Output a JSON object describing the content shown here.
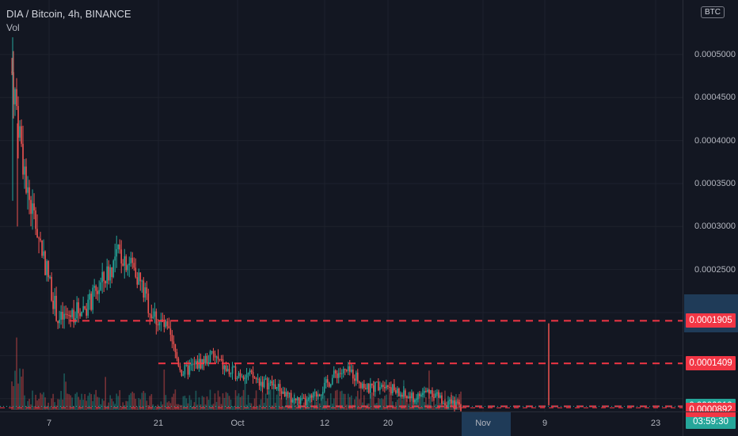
{
  "legend": {
    "symbol": "DIA / Bitcoin, 4h, BINANCE",
    "volume_label": "Vol"
  },
  "currency_badge": "BTC",
  "price_axis": {
    "ticks": [
      "0.0005000",
      "0.0004500",
      "0.0004000",
      "0.0003500",
      "0.0003000",
      "0.0002500"
    ],
    "min": 8.5e-05,
    "max": 0.000545
  },
  "time_axis": {
    "ticks": [
      "7",
      "21",
      "Oct",
      "12",
      "20",
      "Nov",
      "9",
      "23"
    ]
  },
  "price_tags": [
    {
      "label": "0.0001905",
      "value": 0.0001905,
      "type": "red"
    },
    {
      "label": "0.0001409",
      "value": 0.0001409,
      "type": "red"
    },
    {
      "label": "0.0000910",
      "value": 9.1e-05,
      "type": "teal"
    },
    {
      "label": "03:59:30",
      "type": "teal-countdown"
    },
    {
      "label": "0.0000892",
      "value": 8.92e-05,
      "type": "red"
    }
  ],
  "horizontal_levels": [
    0.0001905,
    0.0001409,
    9.1e-05
  ],
  "colors": {
    "background": "#131722",
    "grid": "#1e222d",
    "up": "#26a69a",
    "down": "#ef5350",
    "level_line": "#f23645",
    "last_price": "#26a69a"
  },
  "chart_data": {
    "type": "candlestick",
    "title": "DIA / Bitcoin, 4h, BINANCE",
    "x_range": [
      "Sep 4",
      "Nov 27"
    ],
    "y_range": [
      8.5e-05,
      0.000545
    ],
    "waypoints_date": [
      "Sep 4",
      "Sep 5",
      "Sep 7",
      "Sep 8",
      "Sep 10",
      "Sep 12",
      "Sep 14",
      "Sep 15",
      "Sep 17",
      "Sep 19",
      "Sep 21",
      "Sep 23",
      "Sep 25",
      "Sep 27",
      "Sep 29",
      "Oct 1",
      "Oct 3",
      "Oct 5",
      "Oct 7",
      "Oct 9",
      "Oct 11",
      "Oct 13",
      "Oct 15",
      "Oct 17",
      "Oct 19",
      "Oct 21",
      "Oct 23",
      "Oct 25",
      "Oct 27",
      "Oct 28"
    ],
    "waypoints_close": [
      0.00048,
      0.00034,
      0.00027,
      0.00019,
      0.0002,
      0.00021,
      0.00024,
      0.00027,
      0.00025,
      0.0002,
      0.00018,
      0.00013,
      0.00014,
      0.00015,
      0.00013,
      0.00013,
      0.00012,
      0.000115,
      0.0001,
      9.5e-05,
      0.00011,
      0.00013,
      0.00013,
      0.00011,
      0.00012,
      0.000105,
      0.0001,
      0.00011,
      9.5e-05,
      9.1e-05
    ]
  }
}
